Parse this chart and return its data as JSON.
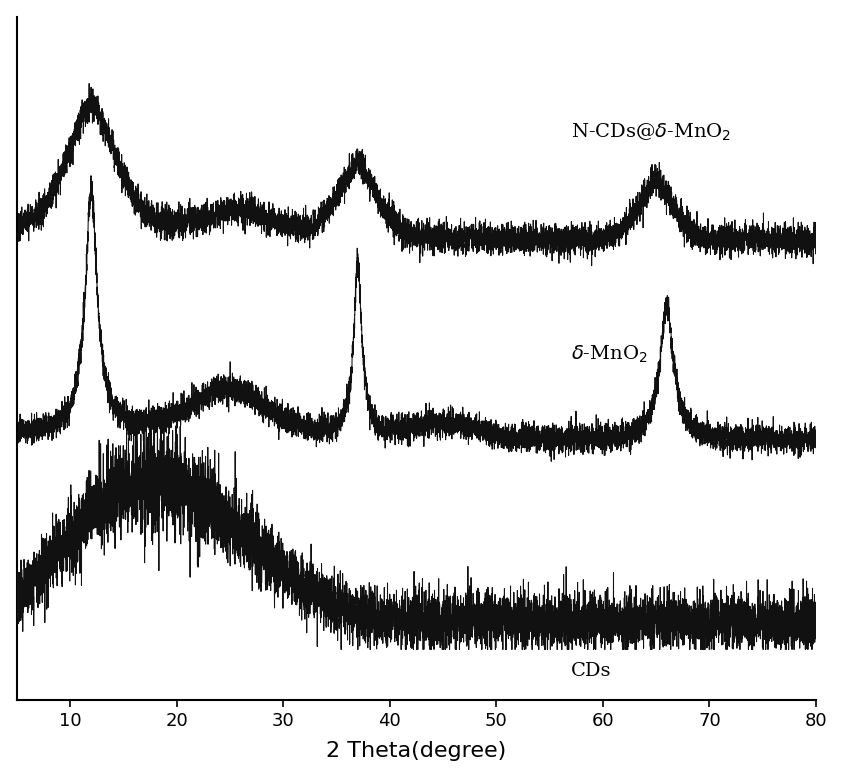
{
  "title": "",
  "xlabel": "2 Theta(degree)",
  "ylabel": "",
  "xlim": [
    5,
    80
  ],
  "background_color": "#ffffff",
  "line_color": "#111111",
  "xlabel_fontsize": 16,
  "tick_fontsize": 13,
  "label_fontsize": 14,
  "x_ticks": [
    10,
    20,
    30,
    40,
    50,
    60,
    70,
    80
  ],
  "offsets": [
    1.6,
    0.8,
    0.0
  ],
  "noise_scale_mno2": 0.018,
  "noise_scale_ncds": 0.016,
  "noise_scale_cds": 0.04,
  "seed": 123
}
